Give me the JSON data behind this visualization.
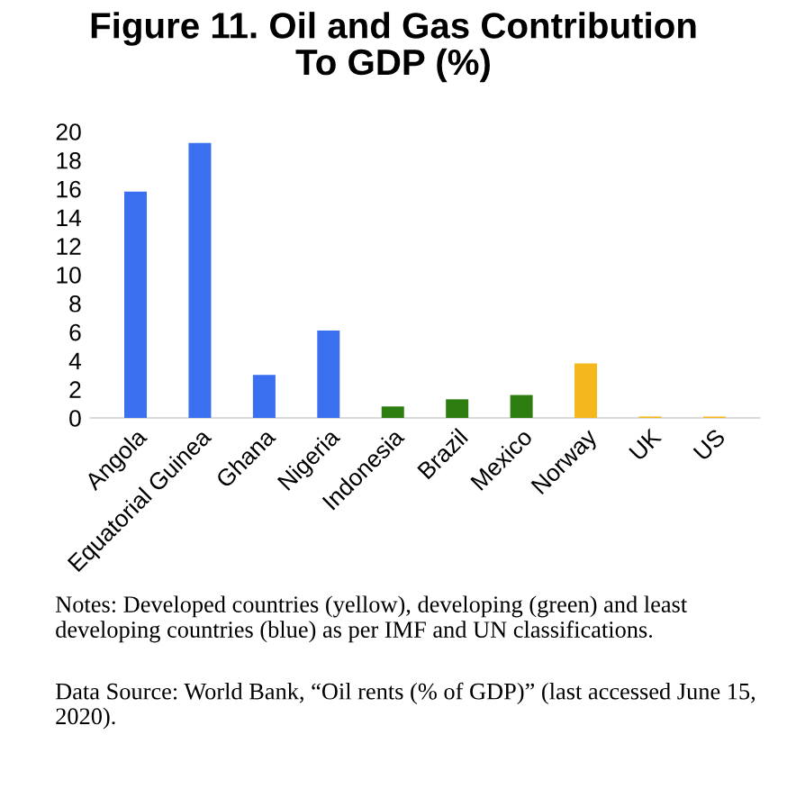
{
  "chart_data": {
    "type": "bar",
    "title": "Figure 11. Oil and Gas Contribution\nTo GDP (%)",
    "categories": [
      "Angola",
      "Equatorial Guinea",
      "Ghana",
      "Nigeria",
      "Indonesia",
      "Brazil",
      "Mexico",
      "Norway",
      "UK",
      "US"
    ],
    "values": [
      15.8,
      19.2,
      3.0,
      6.1,
      0.8,
      1.3,
      1.6,
      3.8,
      0.1,
      0.1
    ],
    "colors": [
      "#3a6ff0",
      "#3a6ff0",
      "#3a6ff0",
      "#3a6ff0",
      "#2e7d10",
      "#2e7d10",
      "#2e7d10",
      "#f5b81c",
      "#f5b81c",
      "#f5b81c"
    ],
    "ylim": [
      0,
      20
    ],
    "yticks": [
      0,
      2,
      4,
      6,
      8,
      10,
      12,
      14,
      16,
      18,
      20
    ],
    "grid": false,
    "legend": false,
    "annotations": [
      "Notes: Developed countries (yellow), developing (green) and least developing countries (blue) as per IMF and UN classifications.",
      "Data Source: World Bank, “Oil rents (% of GDP)” (last accessed June 15, 2020)."
    ]
  }
}
